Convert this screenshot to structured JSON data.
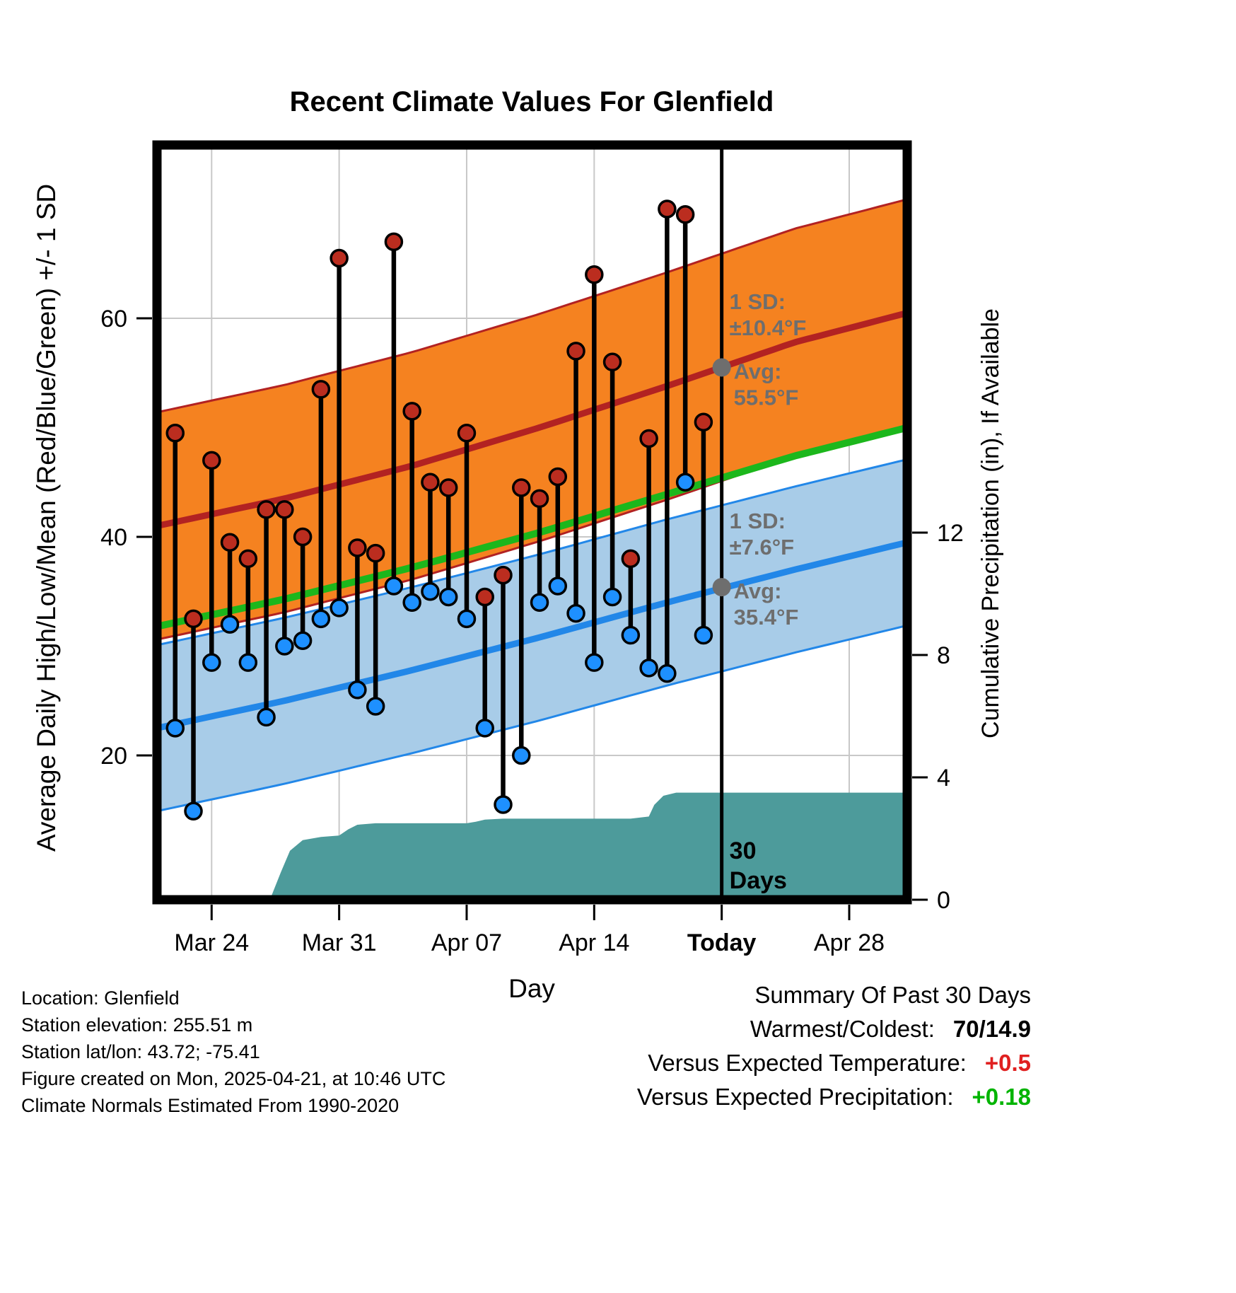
{
  "chart_data": {
    "type": "line",
    "title": "Recent Climate Values For Glenfield",
    "xlabel": "Day",
    "ylabel_left": "Average Daily High/Low/Mean (Red/Blue/Green) +/- 1 SD",
    "ylabel_right": "Cumulative Precipitation (in), If Available",
    "ylim_left": [
      6.8,
      75.9
    ],
    "ylim_right": [
      0,
      24.7
    ],
    "grid": true,
    "x_ticks": [
      {
        "label": "Mar 24",
        "day": 3,
        "bold": false
      },
      {
        "label": "Mar 31",
        "day": 10,
        "bold": false
      },
      {
        "label": "Apr 07",
        "day": 17,
        "bold": false
      },
      {
        "label": "Apr 14",
        "day": 24,
        "bold": false
      },
      {
        "label": "Today",
        "day": 31,
        "bold": true
      },
      {
        "label": "Apr 28",
        "day": 38,
        "bold": false
      }
    ],
    "y_ticks_left": [
      20,
      40,
      60
    ],
    "y_ticks_right": [
      0,
      4,
      8,
      12
    ],
    "today_day": 31,
    "normals_days": [
      0,
      7,
      14,
      21,
      28,
      35,
      41.2
    ],
    "high_avg": [
      41.0,
      43.5,
      46.5,
      50.0,
      53.8,
      57.8,
      60.5
    ],
    "low_avg": [
      22.5,
      25.0,
      27.8,
      30.8,
      34.0,
      37.0,
      39.5
    ],
    "mean_avg": [
      31.8,
      34.3,
      37.2,
      40.4,
      43.9,
      47.4,
      50.0
    ],
    "high_sd": 10.4,
    "low_sd": 7.6,
    "daily": [
      {
        "date": "Mar 22",
        "day": 1,
        "high": 49.5,
        "low": 22.5
      },
      {
        "date": "Mar 23",
        "day": 2,
        "high": 32.5,
        "low": 14.9
      },
      {
        "date": "Mar 24",
        "day": 3,
        "high": 47.0,
        "low": 28.5
      },
      {
        "date": "Mar 25",
        "day": 4,
        "high": 39.5,
        "low": 32.0
      },
      {
        "date": "Mar 26",
        "day": 5,
        "high": 38.0,
        "low": 28.5
      },
      {
        "date": "Mar 27",
        "day": 6,
        "high": 42.5,
        "low": 23.5
      },
      {
        "date": "Mar 28",
        "day": 7,
        "high": 42.5,
        "low": 30.0
      },
      {
        "date": "Mar 29",
        "day": 8,
        "high": 40.0,
        "low": 30.5
      },
      {
        "date": "Mar 30",
        "day": 9,
        "high": 53.5,
        "low": 32.5
      },
      {
        "date": "Mar 31",
        "day": 10,
        "high": 65.5,
        "low": 33.5
      },
      {
        "date": "Apr 01",
        "day": 11,
        "high": 39.0,
        "low": 26.0
      },
      {
        "date": "Apr 02",
        "day": 12,
        "high": 38.5,
        "low": 24.5
      },
      {
        "date": "Apr 03",
        "day": 13,
        "high": 67.0,
        "low": 35.5
      },
      {
        "date": "Apr 04",
        "day": 14,
        "high": 51.5,
        "low": 34.0
      },
      {
        "date": "Apr 05",
        "day": 15,
        "high": 45.0,
        "low": 35.0
      },
      {
        "date": "Apr 06",
        "day": 16,
        "high": 44.5,
        "low": 34.5
      },
      {
        "date": "Apr 07",
        "day": 17,
        "high": 49.5,
        "low": 32.5
      },
      {
        "date": "Apr 08",
        "day": 18,
        "high": 34.5,
        "low": 22.5
      },
      {
        "date": "Apr 09",
        "day": 19,
        "high": 36.5,
        "low": 15.5
      },
      {
        "date": "Apr 10",
        "day": 20,
        "high": 44.5,
        "low": 20.0
      },
      {
        "date": "Apr 11",
        "day": 21,
        "high": 43.5,
        "low": 34.0
      },
      {
        "date": "Apr 12",
        "day": 22,
        "high": 45.5,
        "low": 35.5
      },
      {
        "date": "Apr 13",
        "day": 23,
        "high": 57.0,
        "low": 33.0
      },
      {
        "date": "Apr 14",
        "day": 24,
        "high": 64.0,
        "low": 28.5
      },
      {
        "date": "Apr 15",
        "day": 25,
        "high": 56.0,
        "low": 34.5
      },
      {
        "date": "Apr 16",
        "day": 26,
        "high": 38.0,
        "low": 31.0
      },
      {
        "date": "Apr 17",
        "day": 27,
        "high": 49.0,
        "low": 28.0
      },
      {
        "date": "Apr 18",
        "day": 28,
        "high": 70.0,
        "low": 27.5
      },
      {
        "date": "Apr 19",
        "day": 29,
        "high": 69.5,
        "low": 45.0
      },
      {
        "date": "Apr 20",
        "day": 30,
        "high": 50.5,
        "low": 31.0
      }
    ],
    "precip_cumulative": [
      [
        5.8,
        0.0
      ],
      [
        6.3,
        0.15
      ],
      [
        6.8,
        0.9
      ],
      [
        7.3,
        1.6
      ],
      [
        8,
        1.95
      ],
      [
        9,
        2.05
      ],
      [
        10,
        2.1
      ],
      [
        10.5,
        2.3
      ],
      [
        11,
        2.45
      ],
      [
        12,
        2.5
      ],
      [
        17,
        2.5
      ],
      [
        17.5,
        2.55
      ],
      [
        18,
        2.62
      ],
      [
        19,
        2.65
      ],
      [
        26,
        2.65
      ],
      [
        27,
        2.72
      ],
      [
        27.3,
        3.1
      ],
      [
        27.8,
        3.4
      ],
      [
        28.5,
        3.5
      ],
      [
        41.2,
        3.5
      ]
    ],
    "annotations": {
      "high_sd": {
        "lines": [
          "1 SD:",
          "±10.4°F"
        ]
      },
      "high_avg_pt": {
        "value": 55.5,
        "lines": [
          "Avg:",
          "55.5°F"
        ]
      },
      "low_sd": {
        "lines": [
          "1 SD:",
          "±7.6°F"
        ]
      },
      "low_avg_pt": {
        "value": 35.4,
        "lines": [
          "Avg:",
          "35.4°F"
        ]
      },
      "today": {
        "lines": [
          "30",
          "Days"
        ]
      }
    },
    "colors": {
      "orange_band": "#f58220",
      "high_line": "#b22222",
      "blue_band": "#a8cce8",
      "low_line": "#2287e8",
      "mean_line": "#1cb71c",
      "precip_fill": "#4d9b9b",
      "stem": "#000000",
      "high_dot": "#bb2d1f",
      "low_dot": "#1e90ff",
      "annotation_gray": "#6e6e6e",
      "gridline": "#c8c8c8"
    }
  },
  "footer": {
    "location": "Location: Glenfield",
    "elevation": "Station elevation: 255.51 m",
    "latlon": "Station lat/lon: 43.72; -75.41",
    "created": "Figure created on Mon, 2025-04-21, at 10:46 UTC",
    "normals": "Climate Normals Estimated From 1990-2020"
  },
  "summary": {
    "title": "Summary Of Past 30 Days",
    "warmest_coldest_label": "Warmest/Coldest:",
    "warmest_coldest_value": "70/14.9",
    "vs_temp_label": "Versus Expected Temperature:",
    "vs_temp_value": "+0.5",
    "vs_precip_label": "Versus Expected Precipitation:",
    "vs_precip_value": "+0.18"
  }
}
